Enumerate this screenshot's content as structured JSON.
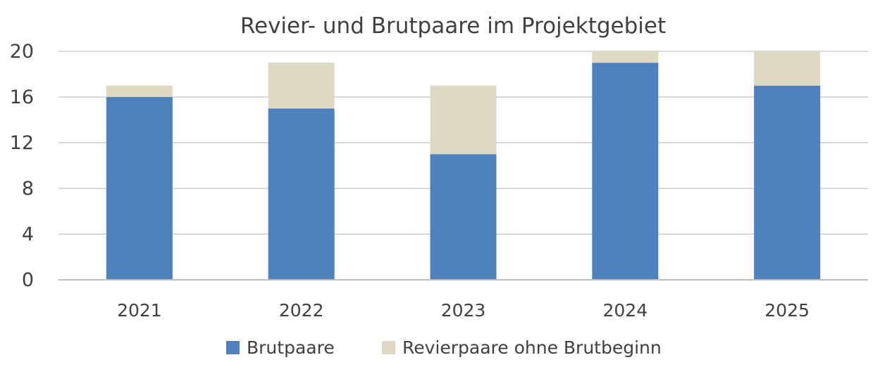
{
  "chart_data": {
    "type": "bar",
    "stacked": true,
    "title": "Revier- und Brutpaare im Projektgebiet",
    "categories": [
      "2021",
      "2022",
      "2023",
      "2024",
      "2025"
    ],
    "series": [
      {
        "name": "Brutpaare",
        "values": [
          16,
          15,
          11,
          19,
          17
        ],
        "color": "#4f81bd"
      },
      {
        "name": "Revierpaare ohne Brutbeginn",
        "values": [
          1,
          4,
          6,
          1,
          3
        ],
        "color": "#ddd9c4"
      }
    ],
    "yticks": [
      "0",
      "4",
      "8",
      "12",
      "16",
      "20"
    ],
    "ylim": [
      0,
      20
    ],
    "grid": true,
    "legend": "bottom"
  }
}
